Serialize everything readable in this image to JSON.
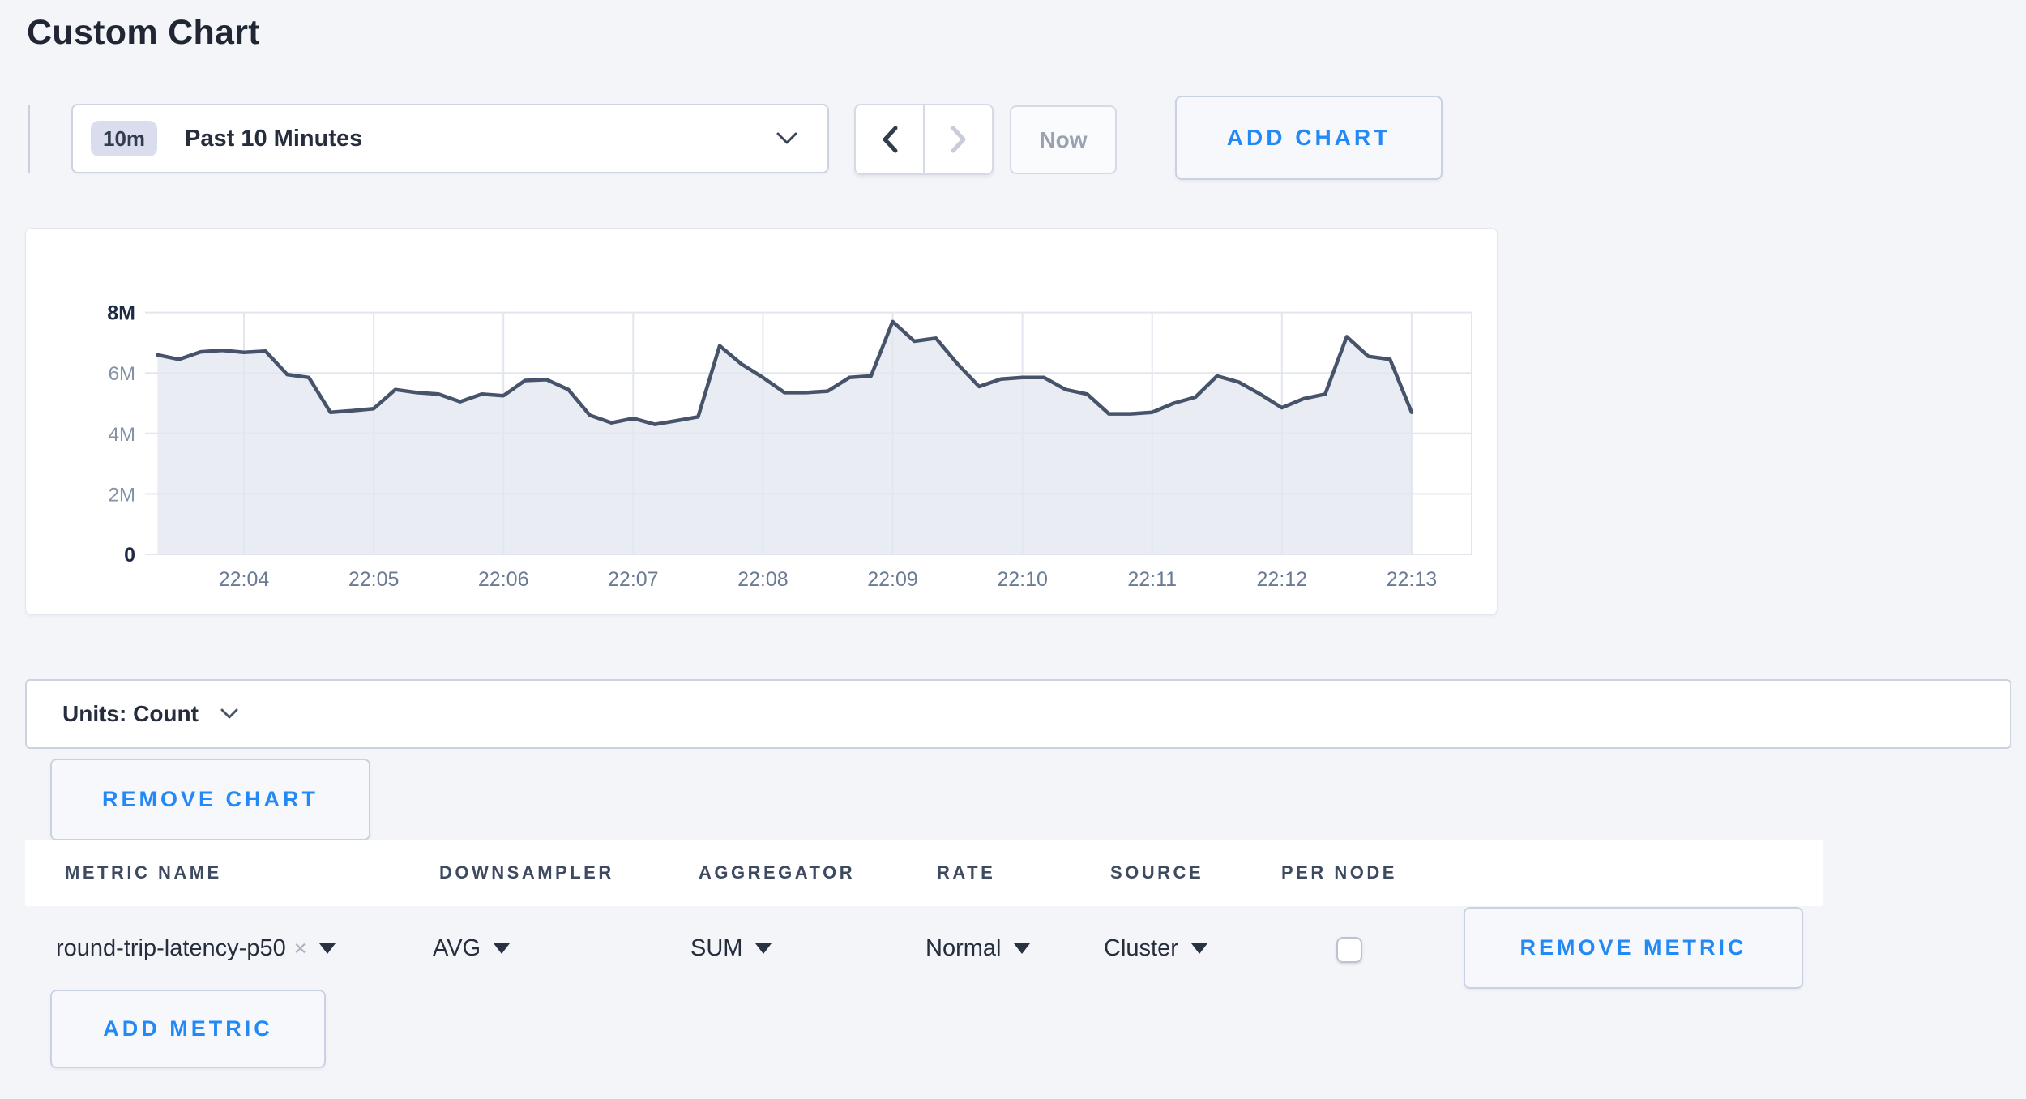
{
  "page": {
    "title": "Custom Chart",
    "background_color": "#f4f5f9",
    "accent_blue": "#2289f7"
  },
  "toolbar": {
    "time_range": {
      "badge": "10m",
      "label": "Past 10 Minutes"
    },
    "now_label": "Now",
    "add_chart_label": "ADD CHART"
  },
  "units_bar": {
    "label": "Units: Count"
  },
  "chart_actions": {
    "remove_chart_label": "REMOVE CHART",
    "add_metric_label": "ADD METRIC"
  },
  "metrics_table": {
    "columns": [
      "METRIC NAME",
      "DOWNSAMPLER",
      "AGGREGATOR",
      "RATE",
      "SOURCE",
      "PER NODE"
    ],
    "rows": [
      {
        "metric_name": "round-trip-latency-p50",
        "clear_symbol": "×",
        "downsampler": "AVG",
        "aggregator": "SUM",
        "rate": "Normal",
        "source": "Cluster",
        "per_node_checked": false,
        "remove_label": "REMOVE METRIC"
      }
    ]
  },
  "chart_data": {
    "type": "area",
    "title": "",
    "xlabel": "",
    "ylabel": "",
    "series_name": "round-trip-latency-p50",
    "unit": "count",
    "ylim": [
      0,
      8000000
    ],
    "grid": true,
    "legend": "none",
    "line_color": "#47536a",
    "fill_color": "#e9ecf2",
    "x_ticks": [
      "22:04",
      "22:05",
      "22:06",
      "22:07",
      "22:08",
      "22:09",
      "22:10",
      "22:11",
      "22:12",
      "22:13"
    ],
    "y_ticks": [
      "0",
      "2M",
      "4M",
      "6M",
      "8M"
    ],
    "x": [
      "22:03:20",
      "22:03:30",
      "22:03:40",
      "22:03:50",
      "22:04:00",
      "22:04:10",
      "22:04:20",
      "22:04:30",
      "22:04:40",
      "22:04:50",
      "22:05:00",
      "22:05:10",
      "22:05:20",
      "22:05:30",
      "22:05:40",
      "22:05:50",
      "22:06:00",
      "22:06:10",
      "22:06:20",
      "22:06:30",
      "22:06:40",
      "22:06:50",
      "22:07:00",
      "22:07:10",
      "22:07:20",
      "22:07:30",
      "22:07:40",
      "22:07:50",
      "22:08:00",
      "22:08:10",
      "22:08:20",
      "22:08:30",
      "22:08:40",
      "22:08:50",
      "22:09:00",
      "22:09:10",
      "22:09:20",
      "22:09:30",
      "22:09:40",
      "22:09:50",
      "22:10:00",
      "22:10:10",
      "22:10:20",
      "22:10:30",
      "22:10:40",
      "22:10:50",
      "22:11:00",
      "22:11:10",
      "22:11:20",
      "22:11:30",
      "22:11:40",
      "22:11:50",
      "22:12:00",
      "22:12:10",
      "22:12:20",
      "22:12:30",
      "22:12:40",
      "22:12:50",
      "22:13:00"
    ],
    "values_millions": [
      6.6,
      6.45,
      6.7,
      6.75,
      6.68,
      6.72,
      5.95,
      5.85,
      4.7,
      4.75,
      4.82,
      5.45,
      5.35,
      5.3,
      5.05,
      5.3,
      5.25,
      5.75,
      5.78,
      5.45,
      4.6,
      4.35,
      4.5,
      4.3,
      4.42,
      4.55,
      6.9,
      6.3,
      5.85,
      5.35,
      5.35,
      5.4,
      5.85,
      5.9,
      7.7,
      7.05,
      7.15,
      6.3,
      5.55,
      5.8,
      5.85,
      5.85,
      5.45,
      5.3,
      4.65,
      4.65,
      4.7,
      5.0,
      5.2,
      5.9,
      5.7,
      5.3,
      4.85,
      5.15,
      5.3,
      7.2,
      6.55,
      6.45,
      4.7
    ]
  }
}
